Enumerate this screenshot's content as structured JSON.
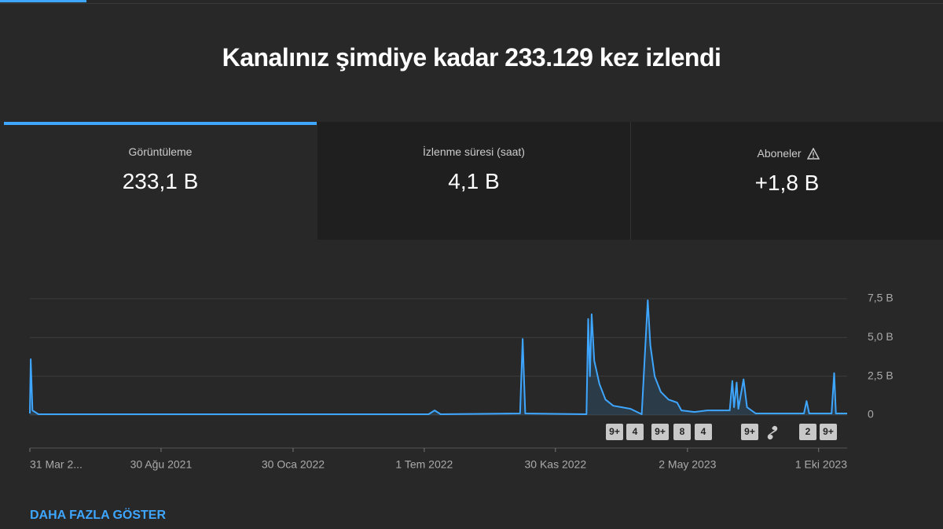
{
  "header": {
    "title": "Kanalınız şimdiye kadar 233.129 kez izlendi"
  },
  "tabs": [
    {
      "label": "Görüntüleme",
      "value": "233,1 B"
    },
    {
      "label": "İzlenme süresi (saat)",
      "value": "4,1 B"
    },
    {
      "label": "Aboneler",
      "value": "+1,8 B"
    }
  ],
  "chart_data": {
    "type": "line",
    "color": "#3ea6ff",
    "grid": true,
    "x": [
      "2021-03-31",
      "2021-04-01",
      "2021-04-03",
      "2021-04-10",
      "2022-07-06",
      "2022-07-13",
      "2022-07-20",
      "2022-10-20",
      "2022-10-23",
      "2022-10-26",
      "2023-01-05",
      "2023-01-07",
      "2023-01-09",
      "2023-01-11",
      "2023-01-14",
      "2023-01-20",
      "2023-01-27",
      "2023-02-05",
      "2023-02-15",
      "2023-02-25",
      "2023-03-10",
      "2023-03-17",
      "2023-03-20",
      "2023-03-25",
      "2023-04-01",
      "2023-04-10",
      "2023-04-20",
      "2023-04-25",
      "2023-05-10",
      "2023-05-25",
      "2023-06-20",
      "2023-06-23",
      "2023-06-25",
      "2023-06-28",
      "2023-06-30",
      "2023-07-06",
      "2023-07-10",
      "2023-07-20",
      "2023-09-14",
      "2023-09-17",
      "2023-09-20",
      "2023-10-16",
      "2023-10-19",
      "2023-10-21",
      "2023-11-03"
    ],
    "values": [
      0.1,
      3.6,
      0.3,
      0.05,
      0.05,
      0.3,
      0.05,
      0.1,
      4.9,
      0.1,
      0.05,
      6.2,
      2.5,
      6.5,
      3.5,
      2.0,
      1.0,
      0.6,
      0.5,
      0.4,
      0.05,
      7.4,
      4.5,
      2.5,
      1.5,
      1.0,
      0.8,
      0.3,
      0.2,
      0.3,
      0.3,
      2.2,
      0.5,
      2.1,
      0.4,
      2.3,
      0.5,
      0.1,
      0.1,
      0.9,
      0.1,
      0.1,
      2.7,
      0.1,
      0.1
    ],
    "xlim": [
      "2021-03-31",
      "2023-11-03"
    ],
    "xticks": [
      {
        "value": "2021-03-31",
        "label": "31 Mar 2..."
      },
      {
        "value": "2021-08-30",
        "label": "30 Ağu 2021"
      },
      {
        "value": "2022-01-30",
        "label": "30 Oca 2022"
      },
      {
        "value": "2022-07-01",
        "label": "1 Tem 2022"
      },
      {
        "value": "2022-11-30",
        "label": "30 Kas 2022"
      },
      {
        "value": "2023-05-02",
        "label": "2 May 2023"
      },
      {
        "value": "2023-10-01",
        "label": "1 Eki 2023"
      }
    ],
    "ylim": [
      0,
      7.5
    ],
    "yticks": [
      0,
      {
        "value": 2.5,
        "label": "2,5 B"
      },
      {
        "value": 5,
        "label": "5,0 B"
      },
      {
        "value": 7.5,
        "label": "7,5 B"
      }
    ]
  },
  "markers": [
    "9+",
    "4",
    "9+",
    "8",
    "4",
    "9+",
    "2",
    "9+"
  ],
  "show_more": "DAHA FAZLA GÖSTER"
}
